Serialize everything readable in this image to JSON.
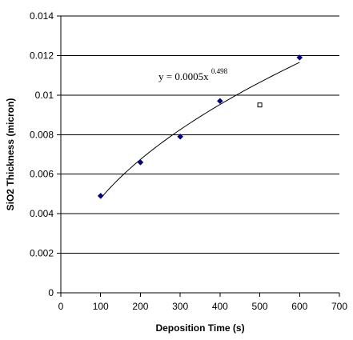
{
  "chart_data": {
    "type": "scatter",
    "title": "",
    "xlabel": "Deposition Time (s)",
    "ylabel": "SiO2 Thickness (micron)",
    "xlim": [
      0,
      700
    ],
    "ylim": [
      0,
      0.014
    ],
    "x_ticks": [
      0,
      100,
      200,
      300,
      400,
      500,
      600,
      700
    ],
    "y_ticks": [
      0,
      0.002,
      0.004,
      0.006,
      0.008,
      0.01,
      0.012,
      0.014
    ],
    "x_tick_labels": [
      "0",
      "100",
      "200",
      "300",
      "400",
      "500",
      "600",
      "700"
    ],
    "y_tick_labels": [
      "0",
      "0.002",
      "0.004",
      "0.006",
      "0.008",
      "0.01",
      "0.012",
      "0.014"
    ],
    "grid": "horizontal",
    "legend": "none",
    "series": [
      {
        "marker": "filled-diamond",
        "color": "#000080",
        "x": [
          100,
          200,
          300,
          400,
          600
        ],
        "y": [
          0.0049,
          0.0066,
          0.0079,
          0.0097,
          0.0119
        ]
      },
      {
        "marker": "open-square",
        "color": "#000000",
        "x": [
          500
        ],
        "y": [
          0.0095
        ]
      }
    ],
    "trendline": {
      "type": "power",
      "coefficient": 0.0005,
      "exponent": 0.498,
      "x_range": [
        100,
        600
      ],
      "color": "#000000",
      "label_main": "y = 0.0005x",
      "label_exponent": "0.498"
    }
  }
}
